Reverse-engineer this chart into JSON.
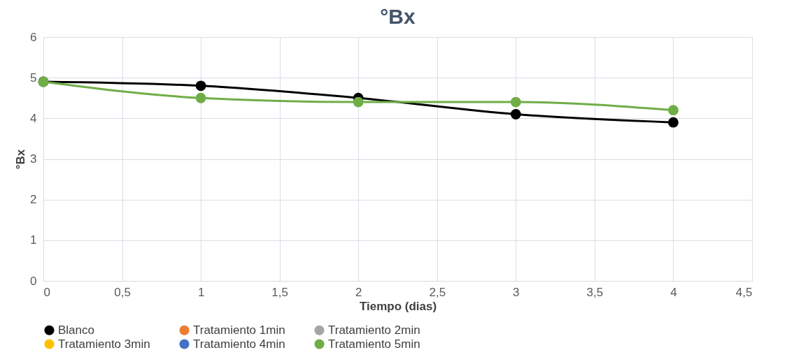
{
  "chart_data": {
    "type": "line",
    "title": "°Bx",
    "xlabel": "Tiempo (dias)",
    "ylabel": "°Bx",
    "x": [
      0,
      1,
      2,
      3,
      4
    ],
    "series": [
      {
        "name": "Blanco",
        "color": "#000000",
        "values": [
          4.9,
          4.8,
          4.5,
          4.1,
          3.9
        ]
      },
      {
        "name": "Tratamiento 1min",
        "color": "#ed7d31",
        "values": [
          null,
          null,
          null,
          null,
          null
        ]
      },
      {
        "name": "Tratamiento 2min",
        "color": "#a5a5a5",
        "values": [
          null,
          null,
          null,
          null,
          null
        ]
      },
      {
        "name": "Tratamiento 3min",
        "color": "#ffc000",
        "values": [
          null,
          null,
          null,
          null,
          null
        ]
      },
      {
        "name": "Tratamiento 4min",
        "color": "#4472c4",
        "values": [
          null,
          null,
          null,
          null,
          null
        ]
      },
      {
        "name": "Tratamiento 5min",
        "color": "#70ad47",
        "values": [
          4.9,
          4.5,
          4.4,
          4.4,
          4.2
        ]
      }
    ],
    "xlim": [
      0,
      4.5
    ],
    "xticks": [
      0,
      {
        "value": 0.5,
        "label": "0,5"
      },
      1,
      {
        "value": 1.5,
        "label": "1,5"
      },
      2,
      {
        "value": 2.5,
        "label": "2,5"
      },
      3,
      {
        "value": 3.5,
        "label": "3,5"
      },
      4,
      {
        "value": 4.5,
        "label": "4,5"
      }
    ],
    "ylim": [
      0,
      6
    ],
    "yticks": [
      0,
      1,
      2,
      3,
      4,
      5,
      6
    ],
    "grid": true,
    "legend": "bottom",
    "marker": "circle",
    "line_style": "solid"
  }
}
